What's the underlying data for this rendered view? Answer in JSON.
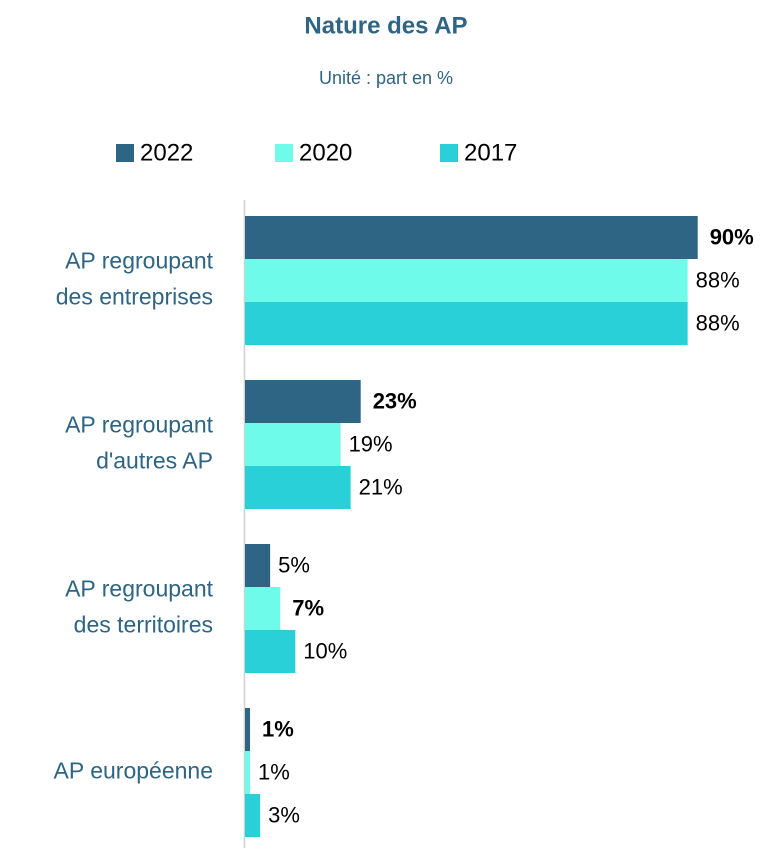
{
  "chart_data": {
    "type": "bar",
    "orientation": "horizontal",
    "title": "Nature des AP",
    "subtitle": "Unité : part en %",
    "categories": [
      [
        "AP regroupant",
        "des entreprises"
      ],
      [
        "AP regroupant",
        "d'autres AP"
      ],
      [
        "AP regroupant",
        "des territoires"
      ],
      [
        "AP européenne"
      ]
    ],
    "series": [
      {
        "name": "2022",
        "color": "#2e6484",
        "values": [
          90,
          23,
          5,
          1
        ],
        "value_labels": [
          "90%",
          "23%",
          "5%",
          "1%"
        ],
        "bold_labels": [
          true,
          true,
          false,
          true
        ]
      },
      {
        "name": "2020",
        "color": "#6ffbe9",
        "values": [
          88,
          19,
          7,
          1
        ],
        "value_labels": [
          "88%",
          "19%",
          "7%",
          "1%"
        ],
        "bold_labels": [
          false,
          false,
          true,
          false
        ]
      },
      {
        "name": "2017",
        "color": "#2ad0d8",
        "values": [
          88,
          21,
          10,
          3
        ],
        "value_labels": [
          "88%",
          "21%",
          "10%",
          "3%"
        ],
        "bold_labels": [
          false,
          false,
          false,
          false
        ]
      }
    ],
    "legend": "top"
  }
}
